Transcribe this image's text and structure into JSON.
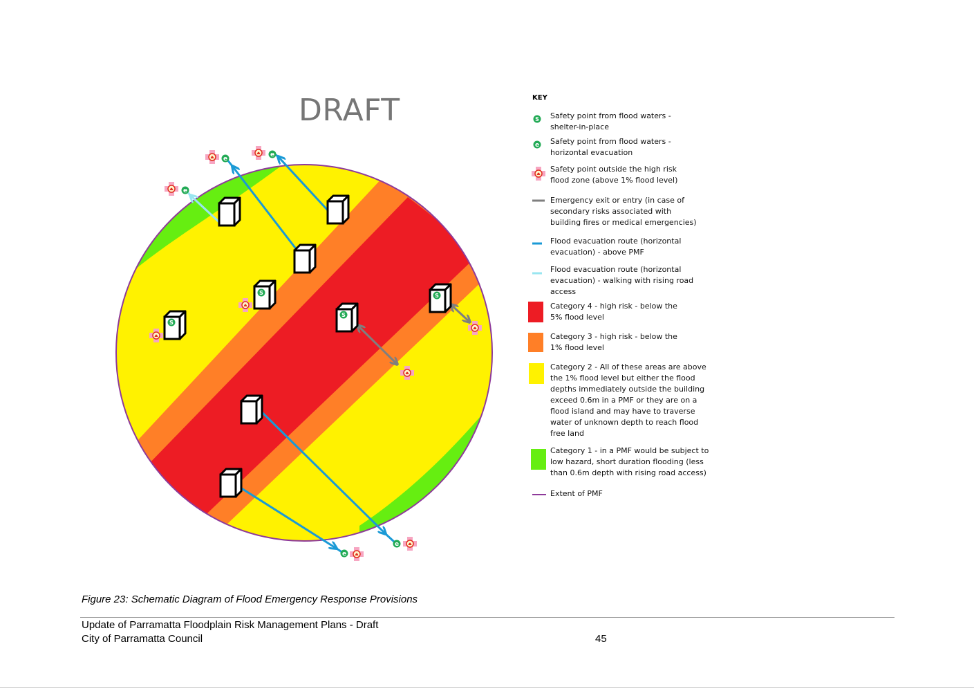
{
  "watermark": "DRAFT",
  "colors": {
    "category4": "#ed1c24",
    "category3": "#ff7f27",
    "category2": "#fff200",
    "category1": "#66ee11",
    "pmf_extent": "#8e3a9a",
    "route_above_pmf": "#1a9ad6",
    "route_rising_road": "#99e6f0",
    "emergency_exit": "#7f7f7f",
    "safety_point": "#22aa55",
    "safety_outside": "#f7a6c2"
  },
  "key": {
    "heading": "KEY",
    "items": [
      {
        "symbol": "shelter-in-place-marker",
        "lines": [
          "Safety point from flood waters -",
          "shelter-in-place"
        ]
      },
      {
        "symbol": "horizontal-evacuation-marker",
        "lines": [
          "Safety point from flood waters -",
          "horizontal evacuation"
        ]
      },
      {
        "symbol": "outside-zone-marker",
        "lines": [
          "Safety point outside the high risk",
          "flood zone (above 1% flood level)"
        ]
      },
      {
        "symbol": "emergency-exit-line",
        "lines": [
          "Emergency exit or entry (in case of",
          "secondary risks associated with",
          "building fires or medical emergencies)"
        ]
      },
      {
        "symbol": "evacuation-route-line",
        "lines": [
          "Flood evacuation route (horizontal",
          "evacuation) - above PMF"
        ]
      },
      {
        "symbol": "rising-road-route-line",
        "lines": [
          "Flood evacuation route (horizontal",
          "evacuation) - walking with rising road",
          "access"
        ]
      },
      {
        "symbol": "category-4-swatch",
        "lines": [
          "Category 4 - high risk - below the",
          "5% flood level"
        ]
      },
      {
        "symbol": "category-3-swatch",
        "lines": [
          "Category 3 - high risk - below the",
          "1% flood level"
        ]
      },
      {
        "symbol": "category-2-swatch",
        "lines": [
          "Category 2 - All of these areas are above",
          "the 1% flood level but either the flood",
          "depths immediately outside the building",
          "exceed 0.6m in a PMF or they are on a",
          "flood island and may have to traverse",
          "water of unknown depth to reach flood",
          "free land"
        ]
      },
      {
        "symbol": "category-1-swatch",
        "lines": [
          "Category 1 - in a PMF would be subject to",
          "low hazard, short duration flooding (less",
          "than 0.6m depth with rising road access)"
        ]
      },
      {
        "symbol": "pmf-extent-line",
        "lines": [
          "Extent of PMF"
        ]
      }
    ]
  },
  "markers": {
    "shelter_letter": "S",
    "evacuation_letter": "e"
  },
  "caption": "Figure 23: Schematic Diagram of Flood Emergency Response Provisions",
  "footer": {
    "line1": "Update of Parramatta Floodplain Risk Management Plans - Draft",
    "line2": "City of Parramatta Council",
    "page_number": "45"
  }
}
